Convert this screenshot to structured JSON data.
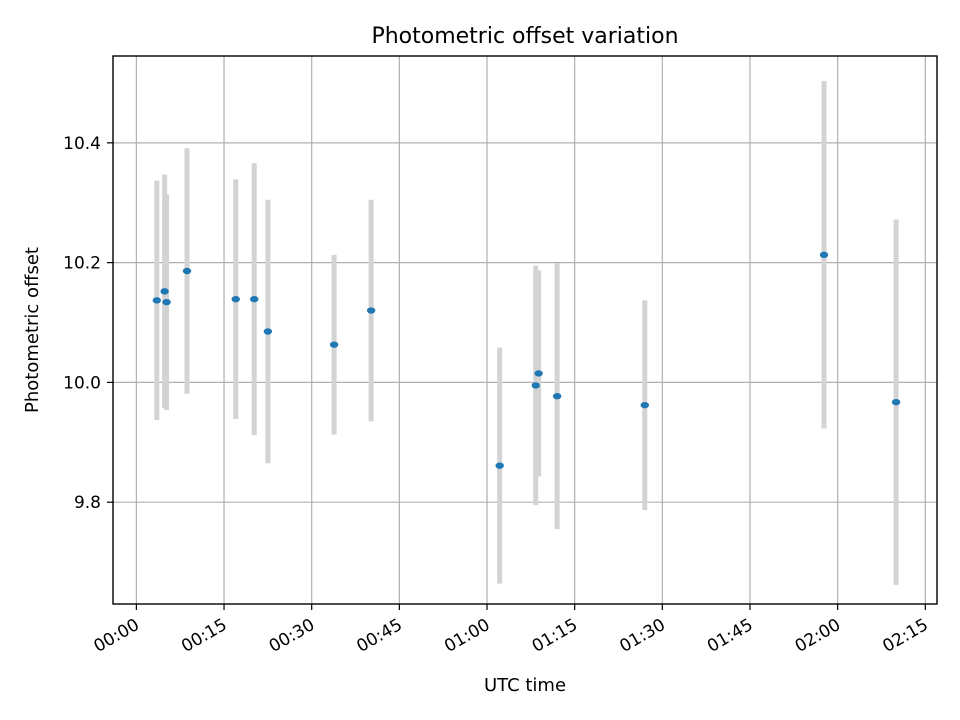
{
  "chart_data": {
    "type": "scatter",
    "title": "Photometric offset variation",
    "xlabel": "UTC time",
    "ylabel": "Photometric offset",
    "xlim": [
      "23:56",
      "02:17"
    ],
    "ylim": [
      9.63,
      10.545
    ],
    "x_ticks": [
      "00:00",
      "00:15",
      "00:30",
      "00:45",
      "01:00",
      "01:15",
      "01:30",
      "01:45",
      "02:00",
      "02:15"
    ],
    "y_ticks": [
      9.8,
      10.0,
      10.2,
      10.4
    ],
    "y_tick_labels": [
      "9.8",
      "10.0",
      "10.2",
      "10.4"
    ],
    "grid": true,
    "errorbar_color": "#d3d3d3",
    "marker_color": "#1f77b4",
    "points": [
      {
        "t": "00:03:30",
        "y": 10.137,
        "err": 0.2
      },
      {
        "t": "00:04:50",
        "y": 10.152,
        "err": 0.195
      },
      {
        "t": "00:05:10",
        "y": 10.134,
        "err": 0.18
      },
      {
        "t": "00:08:40",
        "y": 10.186,
        "err": 0.205
      },
      {
        "t": "00:17:00",
        "y": 10.139,
        "err": 0.2
      },
      {
        "t": "00:20:10",
        "y": 10.139,
        "err": 0.227
      },
      {
        "t": "00:22:30",
        "y": 10.085,
        "err": 0.22
      },
      {
        "t": "00:33:50",
        "y": 10.063,
        "err": 0.15
      },
      {
        "t": "00:40:10",
        "y": 10.12,
        "err": 0.185
      },
      {
        "t": "01:02:10",
        "y": 9.861,
        "err": 0.197
      },
      {
        "t": "01:08:20",
        "y": 9.995,
        "err": 0.2
      },
      {
        "t": "01:08:50",
        "y": 10.015,
        "err": 0.172
      },
      {
        "t": "01:12:00",
        "y": 9.977,
        "err": 0.222
      },
      {
        "t": "01:27:00",
        "y": 9.962,
        "err": 0.175
      },
      {
        "t": "01:57:40",
        "y": 10.213,
        "err": 0.29
      },
      {
        "t": "02:10:00",
        "y": 9.967,
        "err": 0.305
      }
    ]
  }
}
